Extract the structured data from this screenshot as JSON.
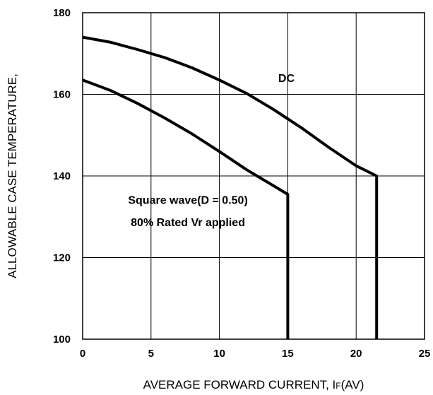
{
  "chart_data": {
    "type": "line",
    "xlabel": "AVERAGE FORWARD CURRENT, I",
    "xlabel_sub": "F",
    "xlabel_suffix": "(AV)",
    "ylabel": "ALLOWABLE CASE TEMPERATURE,",
    "xlim": [
      0,
      25
    ],
    "ylim": [
      100,
      180
    ],
    "xticks": [
      0,
      5,
      10,
      15,
      20,
      25
    ],
    "yticks": [
      100,
      120,
      140,
      160,
      180
    ],
    "grid": true,
    "series": [
      {
        "name": "DC",
        "x": [
          0,
          2,
          4,
          6,
          8,
          10,
          12,
          14,
          16,
          18,
          20,
          21.5,
          21.5
        ],
        "y": [
          174,
          172.8,
          171,
          169,
          166.5,
          163.5,
          160.2,
          156.2,
          151.8,
          147,
          142.5,
          140,
          100
        ]
      },
      {
        "name": "Square wave(D = 0.50)",
        "x": [
          0,
          2,
          4,
          6,
          8,
          10,
          12,
          14,
          15,
          15
        ],
        "y": [
          163.5,
          161,
          157.8,
          154.2,
          150.3,
          146,
          141.5,
          137.5,
          135.5,
          100
        ]
      }
    ],
    "annotations": [
      {
        "text": "DC",
        "x": 14.9,
        "y": 163
      },
      {
        "text": "Square wave(D = 0.50)",
        "x": 7.7,
        "y": 133.2
      },
      {
        "text": "80% Rated Vr applied",
        "x": 7.7,
        "y": 127.7
      }
    ]
  }
}
